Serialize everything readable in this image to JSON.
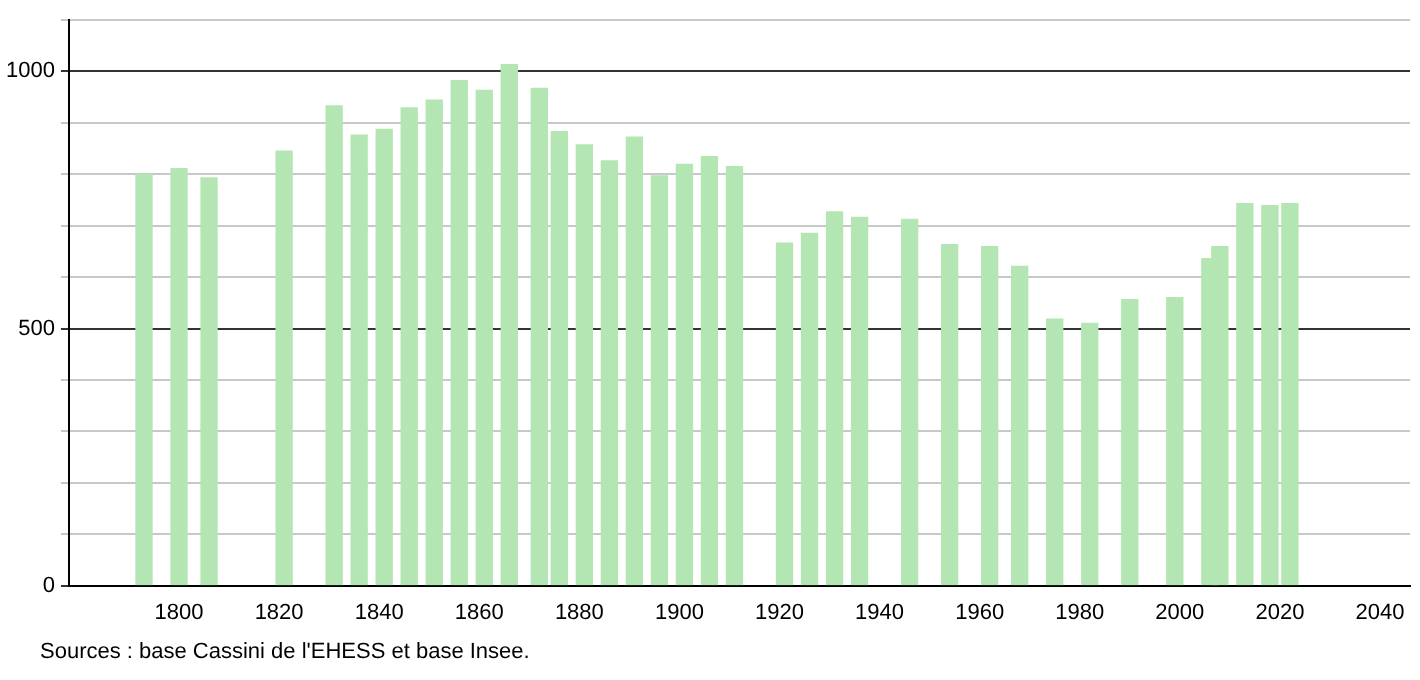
{
  "chart_data": {
    "type": "bar",
    "x": [
      1793,
      1800,
      1806,
      1821,
      1831,
      1836,
      1841,
      1846,
      1851,
      1856,
      1861,
      1866,
      1872,
      1876,
      1881,
      1886,
      1891,
      1896,
      1901,
      1906,
      1911,
      1921,
      1926,
      1931,
      1936,
      1946,
      1954,
      1962,
      1968,
      1975,
      1982,
      1990,
      1999,
      2006,
      2008,
      2013,
      2018,
      2022
    ],
    "values": [
      800,
      811,
      793,
      845,
      933,
      876,
      887,
      929,
      944,
      982,
      963,
      1013,
      967,
      883,
      857,
      826,
      872,
      797,
      819,
      834,
      815,
      666,
      685,
      727,
      716,
      712,
      663,
      659,
      621,
      518,
      510,
      556,
      560,
      636,
      659,
      743,
      739,
      743
    ],
    "color": "#b3e6b3",
    "xlim": [
      1778,
      2046
    ],
    "xticks": [
      1800,
      1820,
      1840,
      1860,
      1880,
      1900,
      1920,
      1940,
      1960,
      1980,
      2000,
      2020,
      2040
    ],
    "ylim": [
      0,
      1100
    ],
    "yticks": [
      0,
      {
        "value": 100,
        "label": null
      },
      {
        "value": 200,
        "label": null
      },
      {
        "value": 300,
        "label": null
      },
      {
        "value": 400,
        "label": null
      },
      500,
      {
        "value": 600,
        "label": null
      },
      {
        "value": 700,
        "label": null
      },
      {
        "value": 800,
        "label": null
      },
      {
        "value": 900,
        "label": null
      },
      1000,
      {
        "value": 1100,
        "label": null
      }
    ],
    "grid": "y",
    "annotations": [
      "Sources : base Cassini de l'EHESS et base Insee."
    ]
  }
}
